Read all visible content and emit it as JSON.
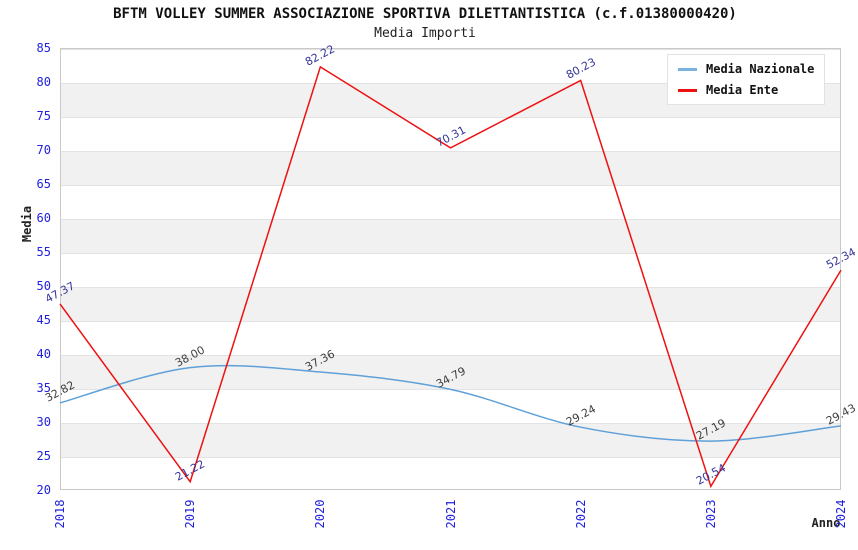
{
  "header": {
    "title": "BFTM VOLLEY SUMMER ASSOCIAZIONE SPORTIVA DILETTANTISTICA (c.f.01380000420)",
    "subtitle": "Media Importi"
  },
  "legend": {
    "items": [
      {
        "label": "Media Nazionale",
        "color": "#7ab2e2"
      },
      {
        "label": "Media Ente",
        "color": "#ee1111"
      }
    ],
    "position": "top-right"
  },
  "chart_data": {
    "type": "line",
    "x": [
      2018,
      2019,
      2020,
      2021,
      2022,
      2023,
      2024
    ],
    "xticks": [
      "2018",
      "2019",
      "2020",
      "2021",
      "2022",
      "2023",
      "2024"
    ],
    "yticks": [
      20,
      25,
      30,
      35,
      40,
      45,
      50,
      55,
      60,
      65,
      70,
      75,
      80,
      85
    ],
    "series": [
      {
        "name": "Media Nazionale",
        "color": "#5fa0d8",
        "label_color": "#3c3c3c",
        "smooth": true,
        "values": [
          32.82,
          38.0,
          37.36,
          34.79,
          29.24,
          27.19,
          29.43
        ],
        "value_labels": [
          "32.82",
          "38.00",
          "37.36",
          "34.79",
          "29.24",
          "27.19",
          "29.43"
        ]
      },
      {
        "name": "Media Ente",
        "color": "#ee1111",
        "label_color": "#333399",
        "smooth": false,
        "values": [
          47.37,
          21.22,
          82.22,
          70.31,
          80.23,
          20.54,
          52.34
        ],
        "value_labels": [
          "47.37",
          "21.22",
          "82.22",
          "70.31",
          "80.23",
          "20.54",
          "52.34"
        ]
      }
    ],
    "xlabel": "Anno",
    "ylabel": "Media",
    "ylim": [
      20,
      85
    ],
    "ytick_step": 5,
    "grid": "horizontal-bands",
    "legend_position": "top-right"
  },
  "colors": {
    "band_gray": "#f1f1f1",
    "band_white": "#ffffff",
    "gridline": "#e3e3e3",
    "plot_border": "#c9c9c9",
    "tick_label": "#2020dd",
    "title_text": "#111111"
  }
}
